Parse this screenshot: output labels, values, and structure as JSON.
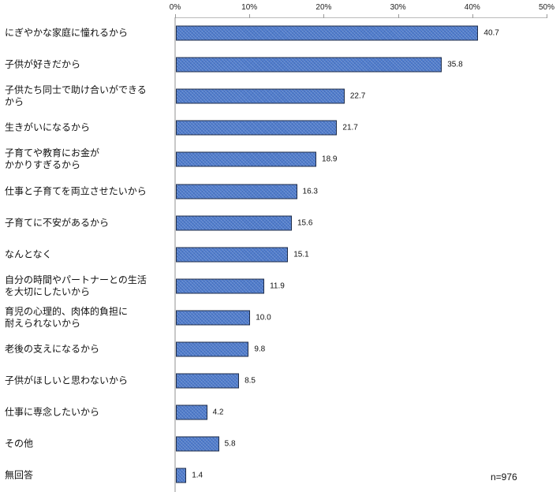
{
  "chart_data": {
    "type": "bar",
    "orientation": "horizontal",
    "title": "",
    "xlabel": "",
    "ylabel": "",
    "xlim": [
      0,
      50
    ],
    "x_ticks": [
      "0%",
      "10%",
      "20%",
      "30%",
      "40%",
      "50%"
    ],
    "grid": false,
    "legend": null,
    "annotation": "n=976",
    "categories": [
      "にぎやかな家庭に憧れるから",
      "子供が好きだから",
      "子供たち同士で助け合いができる\nから",
      "生きがいになるから",
      "子育てや教育にお金が\nかかりすぎるから",
      "仕事と子育てを両立させたいから",
      "子育てに不安があるから",
      "なんとなく",
      "自分の時間やパートナーとの生活\nを大切にしたいから",
      "育児の心理的、肉体的負担に\n耐えられないから",
      "老後の支えになるから",
      "子供がほしいと思わないから",
      "仕事に専念したいから",
      "その他",
      "無回答"
    ],
    "values": [
      40.7,
      35.8,
      22.7,
      21.7,
      18.9,
      16.3,
      15.6,
      15.1,
      11.9,
      10.0,
      9.8,
      8.5,
      4.2,
      5.8,
      1.4
    ],
    "value_labels": [
      "40.7",
      "35.8",
      "22.7",
      "21.7",
      "18.9",
      "16.3",
      "15.6",
      "15.1",
      "11.9",
      "10.0",
      "9.8",
      "8.5",
      "4.2",
      "5.8",
      "1.4"
    ],
    "bar_color": "#4f7ccc",
    "bar_border_color": "#1f2d4a"
  }
}
